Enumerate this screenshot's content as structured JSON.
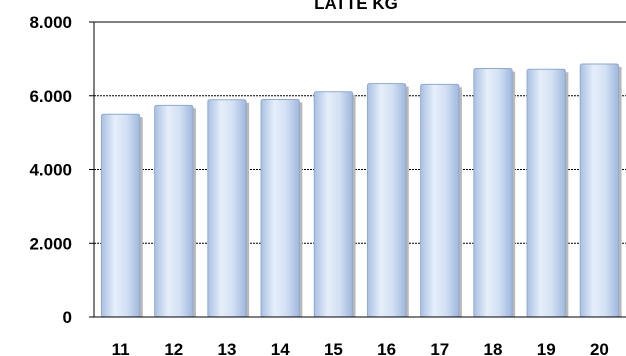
{
  "chart_data": {
    "type": "bar",
    "title": "LATTE KG",
    "xlabel": "",
    "ylabel": "",
    "categories": [
      "11",
      "12",
      "13",
      "14",
      "15",
      "16",
      "17",
      "18",
      "19",
      "20"
    ],
    "values": [
      5500,
      5740,
      5890,
      5900,
      6110,
      6330,
      6310,
      6740,
      6720,
      6860
    ],
    "ylim": [
      0,
      8000
    ],
    "yticks": [
      0,
      2000,
      4000,
      6000,
      8000
    ],
    "ytick_labels": [
      "0",
      "2.000",
      "4.000",
      "6.000",
      "8.000"
    ],
    "grid": true,
    "bar_color": "#c9d9f0",
    "bar_edge": "#8fa9cf"
  }
}
